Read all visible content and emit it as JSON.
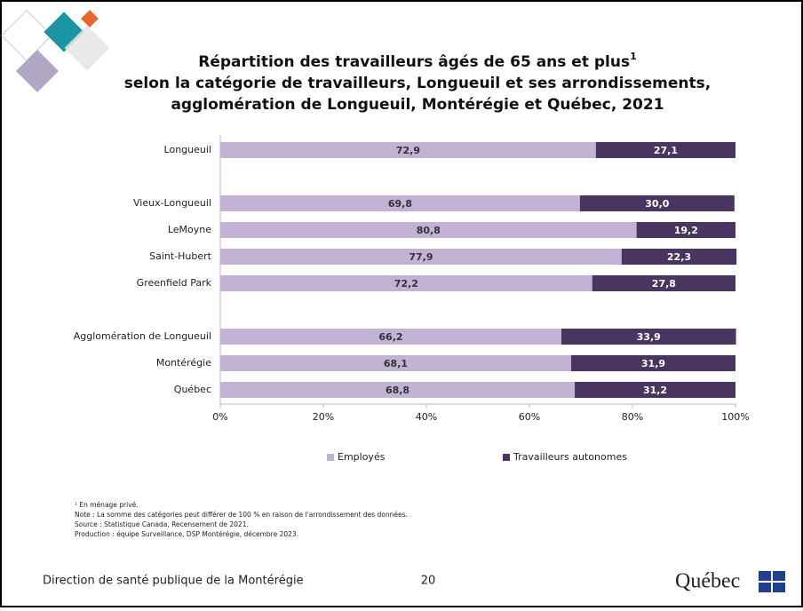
{
  "header": {
    "title_lines": [
      "Répartition des travailleurs âgés de 65 ans et plus",
      "selon la catégorie de travailleurs, Longueuil et ses arrondissements,",
      "agglomération de Longueuil, Montérégie et Québec, 2021"
    ],
    "title_footnote_mark": "1"
  },
  "chart_data": {
    "type": "stacked-barh",
    "categories": [
      "Longueuil",
      null,
      "Vieux-Longueuil",
      "LeMoyne",
      "Saint-Hubert",
      "Greenfield Park",
      null,
      "Agglomération de Longueuil",
      "Montérégie",
      "Québec"
    ],
    "series": [
      {
        "name": "Employés",
        "color": "#c2b2d4",
        "values": [
          72.9,
          null,
          69.8,
          80.8,
          77.9,
          72.2,
          null,
          66.2,
          68.1,
          68.8
        ],
        "value_labels": [
          "72,9",
          null,
          "69,8",
          "80,8",
          "77,9",
          "72,2",
          null,
          "66,2",
          "68,1",
          "68,8"
        ]
      },
      {
        "name": "Travailleurs autonomes",
        "color": "#4a3560",
        "values": [
          27.1,
          null,
          30.0,
          19.2,
          22.3,
          27.8,
          null,
          33.9,
          31.9,
          31.2
        ],
        "value_labels": [
          "27,1",
          null,
          "30,0",
          "19,2",
          "22,3",
          "27,8",
          null,
          "33,9",
          "31,9",
          "31,2"
        ]
      }
    ],
    "xlim": [
      0,
      100
    ],
    "xticks": [
      {
        "value": 0,
        "label": "0%"
      },
      {
        "value": 20,
        "label": "20%"
      },
      {
        "value": 40,
        "label": "40%"
      },
      {
        "value": 60,
        "label": "60%"
      },
      {
        "value": 80,
        "label": "80%"
      },
      {
        "value": 100,
        "label": "100%"
      }
    ],
    "legend": "bottom"
  },
  "footnotes": [
    "¹ En ménage privé.",
    "Note : La somme des catégories peut différer de 100 % en raison de l'arrondissement des données.",
    "Source : Statistique Canada, Recensement de 2021.",
    "Production : équipe Surveillance, DSP Montérégie, décembre 2023."
  ],
  "footer": {
    "organization": "Direction de santé publique de la Montérégie",
    "page_number": 20,
    "logo": "Québec"
  }
}
